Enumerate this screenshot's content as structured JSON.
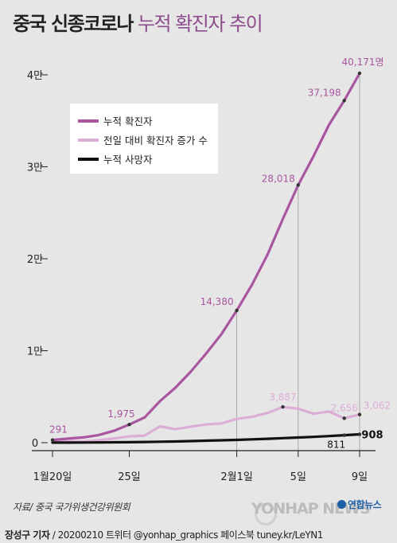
{
  "title": {
    "main": "중국 신종코로나",
    "sub": "누적 확진자 추이"
  },
  "source": "자료/ 중국 국가위생건강위원회",
  "watermark": "YONHAP NEWS",
  "brand": "연합뉴스",
  "footer": {
    "author": "장성구 기자",
    "rest": " / 20200210  트위터 @yonhap_graphics  페이스북 tuney.kr/LeYN1"
  },
  "colors": {
    "cumulative": "#a8569f",
    "daily": "#dcaed6",
    "deaths": "#111111",
    "background": "#e6e6e6"
  },
  "chart_data": {
    "type": "line",
    "y_ticks": [
      {
        "value": 0,
        "label": "0"
      },
      {
        "value": 10000,
        "label": "1만"
      },
      {
        "value": 20000,
        "label": "2만"
      },
      {
        "value": 30000,
        "label": "3만"
      },
      {
        "value": 40000,
        "label": "4만"
      }
    ],
    "ylim": [
      0,
      40171
    ],
    "x_ticks": [
      {
        "label": "1월20일",
        "x": "2020-01-20"
      },
      {
        "label": "25일",
        "x": "2020-01-25"
      },
      {
        "label": "2월1일",
        "x": "2020-02-01"
      },
      {
        "label": "5일",
        "x": "2020-02-05"
      },
      {
        "label": "9일",
        "x": "2020-02-09"
      }
    ],
    "xlim": [
      "2020-01-20",
      "2020-02-09"
    ],
    "legend": {
      "placement": "top-left",
      "entries": [
        "누적 확진자",
        "전일 대비 확진자 증가 수",
        "누적 사망자"
      ]
    },
    "series": [
      {
        "name": "누적 확진자",
        "x": [
          "2020-01-20",
          "2020-01-21",
          "2020-01-22",
          "2020-01-23",
          "2020-01-24",
          "2020-01-25",
          "2020-01-26",
          "2020-01-27",
          "2020-01-28",
          "2020-01-29",
          "2020-01-30",
          "2020-01-31",
          "2020-02-01",
          "2020-02-02",
          "2020-02-03",
          "2020-02-04",
          "2020-02-05",
          "2020-02-06",
          "2020-02-07",
          "2020-02-08",
          "2020-02-09"
        ],
        "values": [
          291,
          440,
          571,
          830,
          1287,
          1975,
          2744,
          4515,
          5974,
          7711,
          9692,
          11791,
          14380,
          17205,
          20438,
          24324,
          28018,
          31161,
          34546,
          37198,
          40171
        ]
      },
      {
        "name": "전일 대비 확진자 증가 수",
        "x": [
          "2020-01-20",
          "2020-01-21",
          "2020-01-22",
          "2020-01-23",
          "2020-01-24",
          "2020-01-25",
          "2020-01-26",
          "2020-01-27",
          "2020-01-28",
          "2020-01-29",
          "2020-01-30",
          "2020-01-31",
          "2020-02-01",
          "2020-02-02",
          "2020-02-03",
          "2020-02-04",
          "2020-02-05",
          "2020-02-06",
          "2020-02-07",
          "2020-02-08",
          "2020-02-09"
        ],
        "values": [
          77,
          149,
          131,
          259,
          457,
          688,
          769,
          1771,
          1459,
          1737,
          1981,
          2099,
          2589,
          2825,
          3233,
          3887,
          3694,
          3143,
          3385,
          2656,
          3062
        ]
      },
      {
        "name": "누적 사망자",
        "x": [
          "2020-01-20",
          "2020-01-21",
          "2020-01-22",
          "2020-01-23",
          "2020-01-24",
          "2020-01-25",
          "2020-01-26",
          "2020-01-27",
          "2020-01-28",
          "2020-01-29",
          "2020-01-30",
          "2020-01-31",
          "2020-02-01",
          "2020-02-02",
          "2020-02-03",
          "2020-02-04",
          "2020-02-05",
          "2020-02-06",
          "2020-02-07",
          "2020-02-08",
          "2020-02-09"
        ],
        "values": [
          6,
          9,
          17,
          25,
          41,
          56,
          80,
          106,
          132,
          170,
          213,
          259,
          304,
          361,
          425,
          490,
          563,
          636,
          722,
          811,
          908
        ]
      }
    ],
    "annotations": [
      {
        "series": 0,
        "x": "2020-01-20",
        "value": 291,
        "label": "291"
      },
      {
        "series": 0,
        "x": "2020-01-25",
        "value": 1975,
        "label": "1,975"
      },
      {
        "series": 0,
        "x": "2020-02-01",
        "value": 14380,
        "label": "14,380"
      },
      {
        "series": 0,
        "x": "2020-02-05",
        "value": 28018,
        "label": "28,018"
      },
      {
        "series": 0,
        "x": "2020-02-08",
        "value": 37198,
        "label": "37,198"
      },
      {
        "series": 0,
        "x": "2020-02-09",
        "value": 40171,
        "label": "40,171명"
      },
      {
        "series": 1,
        "x": "2020-02-04",
        "value": 3887,
        "label": "3,887"
      },
      {
        "series": 1,
        "x": "2020-02-08",
        "value": 2656,
        "label": "2,656"
      },
      {
        "series": 1,
        "x": "2020-02-09",
        "value": 3062,
        "label": "3,062"
      },
      {
        "series": 2,
        "x": "2020-02-08",
        "value": 811,
        "label": "811"
      },
      {
        "series": 2,
        "x": "2020-02-09",
        "value": 908,
        "label": "908"
      }
    ]
  }
}
